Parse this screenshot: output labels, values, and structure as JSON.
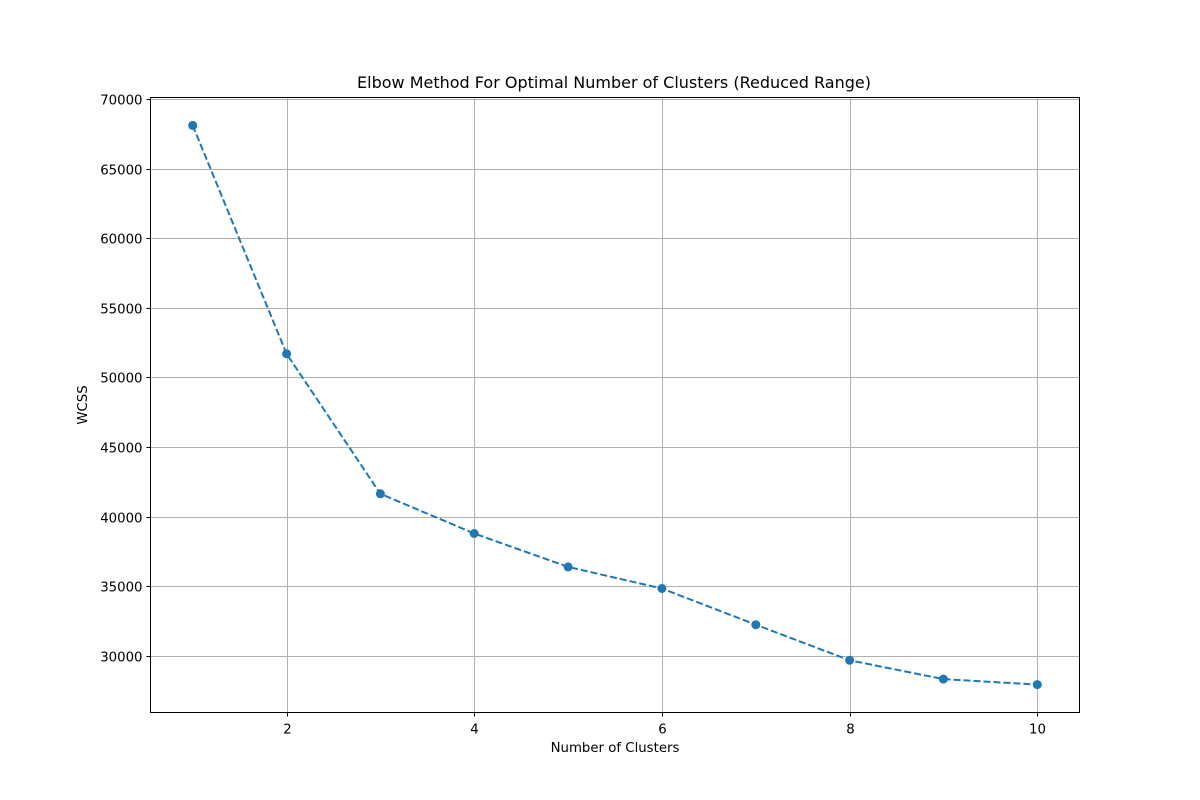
{
  "chart_data": {
    "type": "line",
    "title": "Elbow Method For Optimal Number of Clusters (Reduced Range)",
    "xlabel": "Number of Clusters",
    "ylabel": "WCSS",
    "x": [
      1,
      2,
      3,
      4,
      5,
      6,
      7,
      8,
      9,
      10
    ],
    "series": [
      {
        "values": [
          68100,
          51700,
          41650,
          38800,
          36400,
          34850,
          32250,
          29700,
          28350,
          27950
        ],
        "color": "#1f77b4",
        "line_style": "dashed",
        "marker": "circle"
      }
    ],
    "xlim": [
      0.55,
      10.45
    ],
    "ylim": [
      25950,
      70100
    ],
    "xticks": [
      2,
      4,
      6,
      8,
      10
    ],
    "yticks": [
      30000,
      35000,
      40000,
      45000,
      50000,
      55000,
      60000,
      65000,
      70000
    ],
    "grid": true,
    "legend": "none"
  }
}
